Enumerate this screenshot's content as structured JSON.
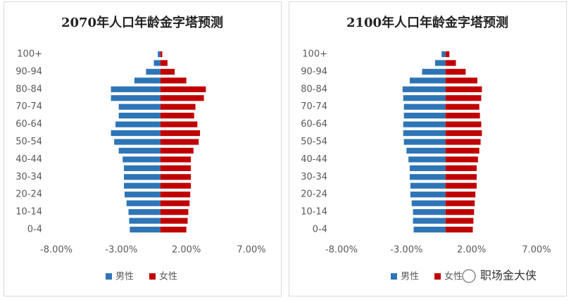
{
  "chart_data": [
    {
      "type": "bar",
      "orientation": "horizontal",
      "stacked": false,
      "title": "2070年人口年龄金字塔预测",
      "categories": [
        "0-4",
        null,
        "10-14",
        null,
        "20-24",
        null,
        "30-34",
        null,
        "40-44",
        null,
        "50-54",
        null,
        "60-64",
        null,
        "70-74",
        null,
        "80-84",
        null,
        "90-94",
        null,
        "100+"
      ],
      "series": [
        {
          "name": "男性",
          "color": "#2e75b6",
          "values": [
            -2.35,
            -2.4,
            -2.45,
            -2.6,
            -2.75,
            -2.8,
            -2.8,
            -2.8,
            -2.9,
            -3.2,
            -3.55,
            -3.8,
            -3.45,
            -3.2,
            -3.2,
            -3.8,
            -3.8,
            -2.0,
            -1.1,
            -0.5,
            -0.2
          ]
        },
        {
          "name": "女性",
          "color": "#c00000",
          "values": [
            2.0,
            2.1,
            2.15,
            2.25,
            2.3,
            2.35,
            2.35,
            2.35,
            2.35,
            2.55,
            2.95,
            3.05,
            2.85,
            2.6,
            2.7,
            3.35,
            3.5,
            2.0,
            1.1,
            0.55,
            0.15
          ]
        }
      ],
      "xlim": [
        -8,
        7
      ],
      "xticks": [
        {
          "value": -8,
          "label": "-8.00%"
        },
        {
          "value": -3,
          "label": "-3.00%"
        },
        {
          "value": 2,
          "label": "2.00%"
        },
        {
          "value": 7,
          "label": "7.00%"
        }
      ],
      "grid": false,
      "legend": "bottom"
    },
    {
      "type": "bar",
      "orientation": "horizontal",
      "stacked": false,
      "title": "2100年人口年龄金字塔预测",
      "categories": [
        "0-4",
        null,
        "10-14",
        null,
        "20-24",
        null,
        "30-34",
        null,
        "40-44",
        null,
        "50-54",
        null,
        "60-64",
        null,
        "70-74",
        null,
        "80-84",
        null,
        "90-94",
        null,
        "100+"
      ],
      "series": [
        {
          "name": "男性",
          "color": "#2e75b6",
          "values": [
            -2.45,
            -2.5,
            -2.5,
            -2.6,
            -2.7,
            -2.7,
            -2.75,
            -2.75,
            -2.85,
            -3.0,
            -3.2,
            -3.25,
            -3.25,
            -3.2,
            -3.2,
            -3.25,
            -3.3,
            -2.75,
            -1.8,
            -0.8,
            -0.3
          ]
        },
        {
          "name": "女性",
          "color": "#c00000",
          "values": [
            2.1,
            2.15,
            2.2,
            2.25,
            2.3,
            2.4,
            2.4,
            2.4,
            2.5,
            2.6,
            2.7,
            2.8,
            2.75,
            2.65,
            2.6,
            2.75,
            2.8,
            2.45,
            1.55,
            0.8,
            0.3
          ]
        }
      ],
      "xlim": [
        -8,
        7
      ],
      "xticks": [
        {
          "value": -8,
          "label": "-8.00%"
        },
        {
          "value": -3,
          "label": "-3.00%"
        },
        {
          "value": 2,
          "label": "2.00%"
        },
        {
          "value": 7,
          "label": "7.00%"
        }
      ],
      "grid": false,
      "legend": "bottom"
    }
  ],
  "watermark": "职场金大侠"
}
